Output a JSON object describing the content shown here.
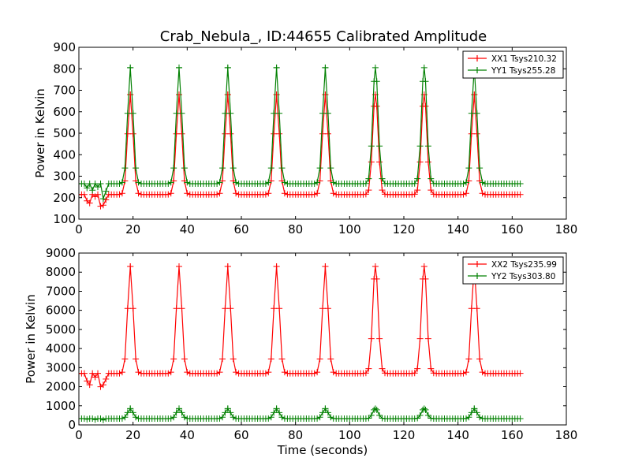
{
  "title": "Crab_Nebula_, ID:44655 Calibrated Amplitude",
  "colors": {
    "red": "#ff0000",
    "green": "#008000",
    "axes": "#000000"
  },
  "chart_data": [
    {
      "type": "line",
      "ylabel": "Power in Kelvin",
      "xlabel": "",
      "xlim": [
        0,
        180
      ],
      "ylim": [
        100,
        900
      ],
      "xticks": [
        "0",
        "20",
        "40",
        "60",
        "80",
        "100",
        "120",
        "140",
        "160",
        "180"
      ],
      "yticks": [
        "100",
        "200",
        "300",
        "400",
        "500",
        "600",
        "700",
        "800",
        "900"
      ],
      "legend_position": "top-right",
      "x_start": 0,
      "x_end": 163,
      "x_step": 1,
      "peak_times": [
        19,
        37,
        55,
        73,
        91,
        109.5,
        127.5,
        146
      ],
      "series": [
        {
          "name": "XX1 Tsys210.32",
          "color": "#ff0000",
          "baseline": 215,
          "peak": 680,
          "early_dips": [
            [
              3,
              185
            ],
            [
              4,
              175
            ],
            [
              6,
              205
            ],
            [
              8,
              160
            ],
            [
              9,
              165
            ],
            [
              10,
              190
            ]
          ]
        },
        {
          "name": "YY1 Tsys255.28",
          "color": "#008000",
          "baseline": 265,
          "peak": 805,
          "early_dips": [
            [
              3,
              245
            ],
            [
              5,
              235
            ],
            [
              7,
              250
            ],
            [
              9,
              195
            ],
            [
              10,
              230
            ]
          ]
        }
      ]
    },
    {
      "type": "line",
      "ylabel": "Power in Kelvin",
      "xlabel": "Time (seconds)",
      "xlim": [
        0,
        180
      ],
      "ylim": [
        0,
        9000
      ],
      "xticks": [
        "0",
        "20",
        "40",
        "60",
        "80",
        "100",
        "120",
        "140",
        "160",
        "180"
      ],
      "yticks": [
        "0",
        "1000",
        "2000",
        "3000",
        "4000",
        "5000",
        "6000",
        "7000",
        "8000",
        "9000"
      ],
      "legend_position": "top-right",
      "x_start": 0,
      "x_end": 163,
      "x_step": 1,
      "peak_times": [
        19,
        37,
        55,
        73,
        91,
        109.5,
        127.5,
        146
      ],
      "series": [
        {
          "name": "XX2 Tsys235.99",
          "color": "#ff0000",
          "baseline": 2700,
          "peak": 8300,
          "early_dips": [
            [
              3,
              2300
            ],
            [
              4,
              2100
            ],
            [
              6,
              2500
            ],
            [
              8,
              2000
            ],
            [
              9,
              2100
            ],
            [
              10,
              2400
            ]
          ]
        },
        {
          "name": "YY2 Tsys303.80",
          "color": "#008000",
          "baseline": 330,
          "peak": 850,
          "early_dips": [
            [
              3,
              300
            ],
            [
              6,
              280
            ],
            [
              9,
              260
            ]
          ]
        }
      ]
    }
  ]
}
